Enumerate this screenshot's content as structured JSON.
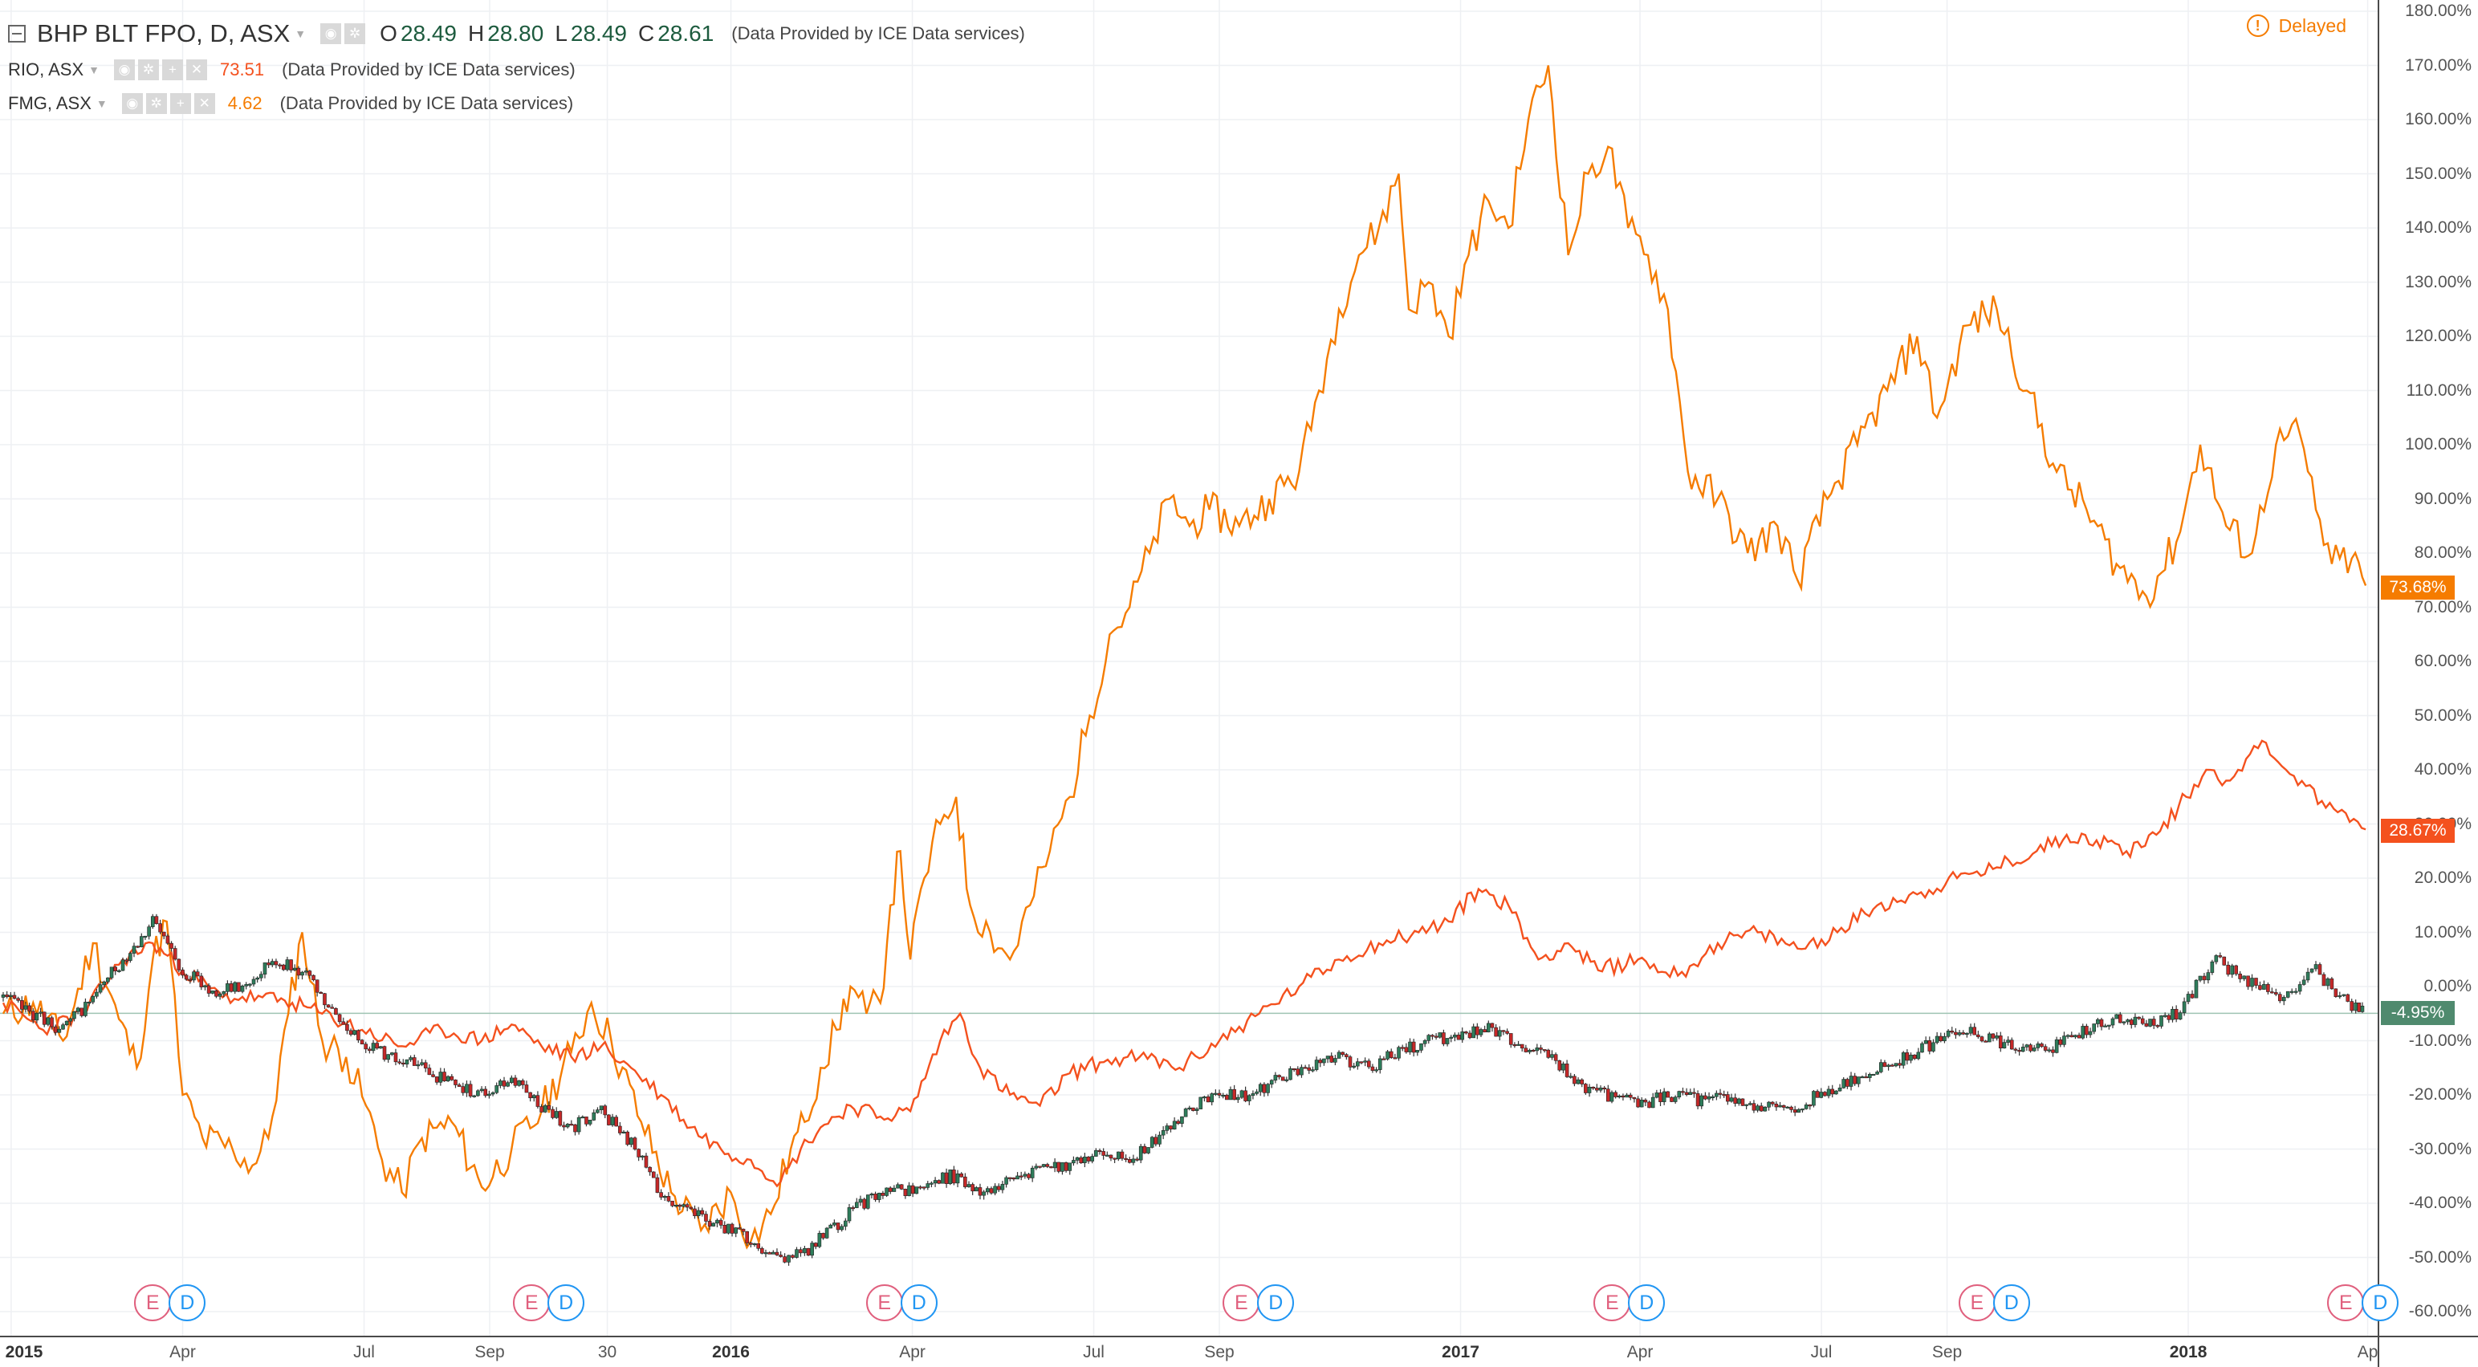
{
  "legend": {
    "main": {
      "symbol": "BHP BLT FPO, D, ASX",
      "o_label": "O",
      "o": "28.49",
      "h_label": "H",
      "h": "28.80",
      "l_label": "L",
      "l": "28.49",
      "c_label": "C",
      "c": "28.61",
      "note": "(Data Provided by ICE Data services)"
    },
    "compare": [
      {
        "symbol": "RIO, ASX",
        "value": "73.51",
        "color": "#f4511e",
        "note": "(Data Provided by ICE Data services)"
      },
      {
        "symbol": "FMG, ASX",
        "value": "4.62",
        "color": "#f57c00",
        "note": "(Data Provided by ICE Data services)"
      }
    ]
  },
  "status": {
    "label": "Delayed",
    "icon": "warning-icon",
    "icon_glyph": "!"
  },
  "price_axis": {
    "ticks": [
      "180.00%",
      "170.00%",
      "160.00%",
      "150.00%",
      "140.00%",
      "130.00%",
      "120.00%",
      "110.00%",
      "100.00%",
      "90.00%",
      "80.00%",
      "70.00%",
      "60.00%",
      "50.00%",
      "40.00%",
      "30.00%",
      "20.00%",
      "10.00%",
      "0.00%",
      "-10.00%",
      "-20.00%",
      "-30.00%",
      "-40.00%",
      "-50.00%",
      "-60.00%"
    ],
    "tick_values": [
      180,
      170,
      160,
      150,
      140,
      130,
      120,
      110,
      100,
      90,
      80,
      70,
      60,
      50,
      40,
      30,
      20,
      10,
      0,
      -10,
      -20,
      -30,
      -40,
      -50,
      -60
    ]
  },
  "price_badges": [
    {
      "series": "FMG",
      "label": "73.68%",
      "value": 73.68,
      "color": "#f57c00"
    },
    {
      "series": "RIO",
      "label": "28.67%",
      "value": 28.67,
      "color": "#f4511e"
    },
    {
      "series": "BHP",
      "label": "-4.95%",
      "value": -4.95,
      "color": "#4f8a6e"
    }
  ],
  "time_axis": [
    {
      "label": "2015",
      "bold": true,
      "day": 4
    },
    {
      "label": "Apr",
      "bold": false,
      "day": 90
    },
    {
      "label": "Jul",
      "bold": false,
      "day": 181
    },
    {
      "label": "Sep",
      "bold": false,
      "day": 244
    },
    {
      "label": "30",
      "bold": false,
      "day": 303
    },
    {
      "label": "2016",
      "bold": true,
      "day": 365
    },
    {
      "label": "Apr",
      "bold": false,
      "day": 456
    },
    {
      "label": "Jul",
      "bold": false,
      "day": 547
    },
    {
      "label": "Sep",
      "bold": false,
      "day": 610
    },
    {
      "label": "2017",
      "bold": true,
      "day": 731
    },
    {
      "label": "Apr",
      "bold": false,
      "day": 821
    },
    {
      "label": "Jul",
      "bold": false,
      "day": 912
    },
    {
      "label": "Sep",
      "bold": false,
      "day": 975
    },
    {
      "label": "2018",
      "bold": true,
      "day": 1096
    },
    {
      "label": "Ap",
      "bold": false,
      "day": 1186
    }
  ],
  "event_markers": [
    {
      "e": "E",
      "d": "D",
      "day": 75
    },
    {
      "e": "E",
      "d": "D",
      "day": 265
    },
    {
      "e": "E",
      "d": "D",
      "day": 442
    },
    {
      "e": "E",
      "d": "D",
      "day": 621
    },
    {
      "e": "E",
      "d": "D",
      "day": 807
    },
    {
      "e": "E",
      "d": "D",
      "day": 990
    },
    {
      "e": "E",
      "d": "D",
      "day": 1175
    }
  ],
  "chart_data": {
    "type": "line",
    "title": "BHP BLT FPO, D, ASX",
    "x_start_date": "2015-01-01",
    "ylim": [
      -60,
      180
    ],
    "xlim_days": [
      0,
      1191
    ],
    "series": [
      {
        "name": "FMG",
        "color": "#f57c00",
        "points": [
          [
            0,
            -5
          ],
          [
            15,
            -3
          ],
          [
            30,
            -10
          ],
          [
            45,
            8
          ],
          [
            58,
            -6
          ],
          [
            67,
            -15
          ],
          [
            75,
            5
          ],
          [
            82,
            12
          ],
          [
            90,
            -20
          ],
          [
            100,
            -28
          ],
          [
            115,
            -30
          ],
          [
            125,
            -33
          ],
          [
            133,
            -28
          ],
          [
            143,
            -5
          ],
          [
            150,
            10
          ],
          [
            160,
            -10
          ],
          [
            172,
            -13
          ],
          [
            182,
            -22
          ],
          [
            190,
            -32
          ],
          [
            200,
            -38
          ],
          [
            210,
            -28
          ],
          [
            225,
            -25
          ],
          [
            240,
            -37
          ],
          [
            255,
            -30
          ],
          [
            270,
            -23
          ],
          [
            285,
            -12
          ],
          [
            295,
            -3
          ],
          [
            305,
            -10
          ],
          [
            320,
            -25
          ],
          [
            335,
            -38
          ],
          [
            350,
            -45
          ],
          [
            365,
            -38
          ],
          [
            375,
            -47
          ],
          [
            385,
            -42
          ],
          [
            395,
            -30
          ],
          [
            402,
            -25
          ],
          [
            410,
            -15
          ],
          [
            418,
            -8
          ],
          [
            425,
            0
          ],
          [
            433,
            -5
          ],
          [
            440,
            -3
          ],
          [
            445,
            15
          ],
          [
            450,
            25
          ],
          [
            455,
            5
          ],
          [
            462,
            20
          ],
          [
            470,
            30
          ],
          [
            478,
            35
          ],
          [
            485,
            15
          ],
          [
            495,
            10
          ],
          [
            505,
            5
          ],
          [
            515,
            15
          ],
          [
            525,
            25
          ],
          [
            535,
            35
          ],
          [
            545,
            50
          ],
          [
            555,
            65
          ],
          [
            565,
            70
          ],
          [
            575,
            80
          ],
          [
            585,
            90
          ],
          [
            595,
            85
          ],
          [
            605,
            88
          ],
          [
            620,
            85
          ],
          [
            635,
            90
          ],
          [
            650,
            95
          ],
          [
            660,
            110
          ],
          [
            670,
            125
          ],
          [
            680,
            135
          ],
          [
            690,
            140
          ],
          [
            700,
            150
          ],
          [
            705,
            125
          ],
          [
            715,
            130
          ],
          [
            725,
            120
          ],
          [
            735,
            135
          ],
          [
            745,
            145
          ],
          [
            755,
            140
          ],
          [
            765,
            160
          ],
          [
            775,
            170
          ],
          [
            785,
            135
          ],
          [
            795,
            150
          ],
          [
            805,
            155
          ],
          [
            815,
            140
          ],
          [
            825,
            135
          ],
          [
            835,
            125
          ],
          [
            845,
            95
          ],
          [
            860,
            90
          ],
          [
            875,
            80
          ],
          [
            890,
            85
          ],
          [
            900,
            75
          ],
          [
            915,
            90
          ],
          [
            930,
            100
          ],
          [
            945,
            110
          ],
          [
            960,
            120
          ],
          [
            970,
            105
          ],
          [
            985,
            122
          ],
          [
            1000,
            125
          ],
          [
            1015,
            110
          ],
          [
            1030,
            95
          ],
          [
            1045,
            88
          ],
          [
            1060,
            78
          ],
          [
            1075,
            72
          ],
          [
            1090,
            82
          ],
          [
            1102,
            100
          ],
          [
            1115,
            85
          ],
          [
            1128,
            80
          ],
          [
            1140,
            100
          ],
          [
            1152,
            102
          ],
          [
            1160,
            88
          ],
          [
            1168,
            78
          ],
          [
            1178,
            79
          ],
          [
            1185,
            74
          ]
        ]
      },
      {
        "name": "RIO",
        "color": "#f4511e",
        "points": [
          [
            0,
            -3
          ],
          [
            20,
            -8
          ],
          [
            40,
            -5
          ],
          [
            60,
            5
          ],
          [
            75,
            8
          ],
          [
            90,
            3
          ],
          [
            110,
            -2
          ],
          [
            130,
            -2
          ],
          [
            145,
            -3
          ],
          [
            160,
            -5
          ],
          [
            180,
            -8
          ],
          [
            200,
            -11
          ],
          [
            220,
            -8
          ],
          [
            240,
            -10
          ],
          [
            255,
            -7
          ],
          [
            270,
            -11
          ],
          [
            285,
            -13
          ],
          [
            300,
            -11
          ],
          [
            315,
            -15
          ],
          [
            330,
            -20
          ],
          [
            345,
            -26
          ],
          [
            360,
            -30
          ],
          [
            375,
            -32
          ],
          [
            390,
            -36
          ],
          [
            400,
            -30
          ],
          [
            410,
            -26
          ],
          [
            425,
            -22
          ],
          [
            440,
            -24
          ],
          [
            455,
            -23
          ],
          [
            470,
            -10
          ],
          [
            480,
            -5
          ],
          [
            490,
            -15
          ],
          [
            505,
            -20
          ],
          [
            520,
            -22
          ],
          [
            535,
            -16
          ],
          [
            550,
            -14
          ],
          [
            570,
            -13
          ],
          [
            590,
            -15
          ],
          [
            610,
            -10
          ],
          [
            630,
            -5
          ],
          [
            650,
            0
          ],
          [
            670,
            5
          ],
          [
            690,
            8
          ],
          [
            710,
            10
          ],
          [
            725,
            12
          ],
          [
            740,
            18
          ],
          [
            755,
            15
          ],
          [
            770,
            5
          ],
          [
            785,
            8
          ],
          [
            800,
            3
          ],
          [
            820,
            5
          ],
          [
            840,
            2
          ],
          [
            860,
            8
          ],
          [
            880,
            10
          ],
          [
            900,
            7
          ],
          [
            920,
            10
          ],
          [
            940,
            15
          ],
          [
            960,
            17
          ],
          [
            980,
            20
          ],
          [
            1000,
            22
          ],
          [
            1020,
            25
          ],
          [
            1035,
            28
          ],
          [
            1050,
            27
          ],
          [
            1065,
            25
          ],
          [
            1080,
            28
          ],
          [
            1095,
            35
          ],
          [
            1105,
            40
          ],
          [
            1115,
            38
          ],
          [
            1125,
            42
          ],
          [
            1135,
            45
          ],
          [
            1145,
            40
          ],
          [
            1155,
            37
          ],
          [
            1165,
            33
          ],
          [
            1175,
            32
          ],
          [
            1185,
            29
          ]
        ]
      },
      {
        "name": "BHP BLT FPO",
        "color": "#26a69a",
        "points": [
          [
            0,
            -2
          ],
          [
            15,
            -5
          ],
          [
            30,
            -8
          ],
          [
            45,
            -2
          ],
          [
            60,
            5
          ],
          [
            75,
            12
          ],
          [
            90,
            3
          ],
          [
            105,
            -1
          ],
          [
            120,
            0
          ],
          [
            135,
            5
          ],
          [
            150,
            3
          ],
          [
            165,
            -5
          ],
          [
            180,
            -10
          ],
          [
            195,
            -13
          ],
          [
            210,
            -15
          ],
          [
            225,
            -18
          ],
          [
            240,
            -20
          ],
          [
            255,
            -17
          ],
          [
            270,
            -22
          ],
          [
            285,
            -26
          ],
          [
            300,
            -23
          ],
          [
            315,
            -29
          ],
          [
            330,
            -38
          ],
          [
            345,
            -42
          ],
          [
            360,
            -44
          ],
          [
            375,
            -47
          ],
          [
            390,
            -50
          ],
          [
            402,
            -49
          ],
          [
            415,
            -45
          ],
          [
            430,
            -40
          ],
          [
            445,
            -38
          ],
          [
            460,
            -37
          ],
          [
            475,
            -35
          ],
          [
            490,
            -38
          ],
          [
            505,
            -36
          ],
          [
            520,
            -34
          ],
          [
            535,
            -33
          ],
          [
            550,
            -31
          ],
          [
            565,
            -32
          ],
          [
            580,
            -28
          ],
          [
            595,
            -22
          ],
          [
            610,
            -20
          ],
          [
            625,
            -20
          ],
          [
            640,
            -17
          ],
          [
            655,
            -15
          ],
          [
            670,
            -13
          ],
          [
            685,
            -15
          ],
          [
            700,
            -12
          ],
          [
            715,
            -10
          ],
          [
            730,
            -9
          ],
          [
            745,
            -8
          ],
          [
            760,
            -11
          ],
          [
            775,
            -13
          ],
          [
            790,
            -18
          ],
          [
            805,
            -20
          ],
          [
            820,
            -22
          ],
          [
            835,
            -20
          ],
          [
            850,
            -21
          ],
          [
            865,
            -20
          ],
          [
            880,
            -22
          ],
          [
            895,
            -23
          ],
          [
            910,
            -20
          ],
          [
            925,
            -18
          ],
          [
            940,
            -15
          ],
          [
            955,
            -13
          ],
          [
            970,
            -10
          ],
          [
            985,
            -8
          ],
          [
            1000,
            -10
          ],
          [
            1015,
            -12
          ],
          [
            1030,
            -11
          ],
          [
            1045,
            -8
          ],
          [
            1060,
            -6
          ],
          [
            1075,
            -7
          ],
          [
            1090,
            -5
          ],
          [
            1100,
            0
          ],
          [
            1110,
            5
          ],
          [
            1120,
            2
          ],
          [
            1130,
            0
          ],
          [
            1140,
            -2
          ],
          [
            1150,
            0
          ],
          [
            1160,
            3
          ],
          [
            1170,
            -1
          ],
          [
            1180,
            -4
          ],
          [
            1185,
            -5
          ]
        ]
      }
    ]
  }
}
